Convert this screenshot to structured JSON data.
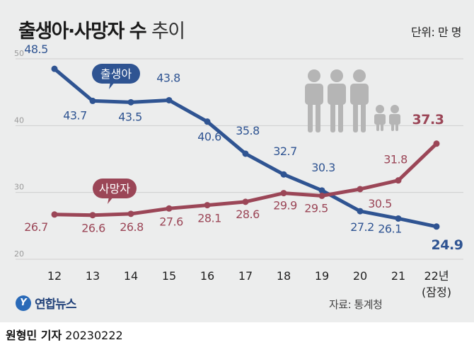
{
  "header": {
    "title_bold": "출생아·사망자 수",
    "title_light": "추이",
    "unit": "단위: 만 명"
  },
  "footer": {
    "logo_mark": "Y",
    "logo_text": "연합뉴스",
    "source": "자료: 통계청",
    "reporter": "원형민 기자",
    "date": "20230222"
  },
  "colors": {
    "births": "#2f5492",
    "deaths": "#9b4657",
    "background": "#eceded",
    "grid": "#cfcfcf",
    "icon": "#b5b5b5"
  },
  "icons": [
    "family-icon"
  ],
  "chart_data": {
    "type": "line",
    "categories": [
      "12",
      "13",
      "14",
      "15",
      "16",
      "17",
      "18",
      "19",
      "20",
      "21",
      "22년"
    ],
    "last_category_note": "(잠정)",
    "ylim": [
      20,
      50
    ],
    "yticks": [
      20,
      30,
      40,
      50
    ],
    "grid": true,
    "series": [
      {
        "name": "출생아",
        "values": [
          48.5,
          43.7,
          43.5,
          43.8,
          40.6,
          35.8,
          32.7,
          30.3,
          27.2,
          26.1,
          24.9
        ]
      },
      {
        "name": "사망자",
        "values": [
          26.7,
          26.6,
          26.8,
          27.6,
          28.1,
          28.6,
          29.9,
          29.5,
          30.5,
          31.8,
          37.3
        ]
      }
    ]
  }
}
